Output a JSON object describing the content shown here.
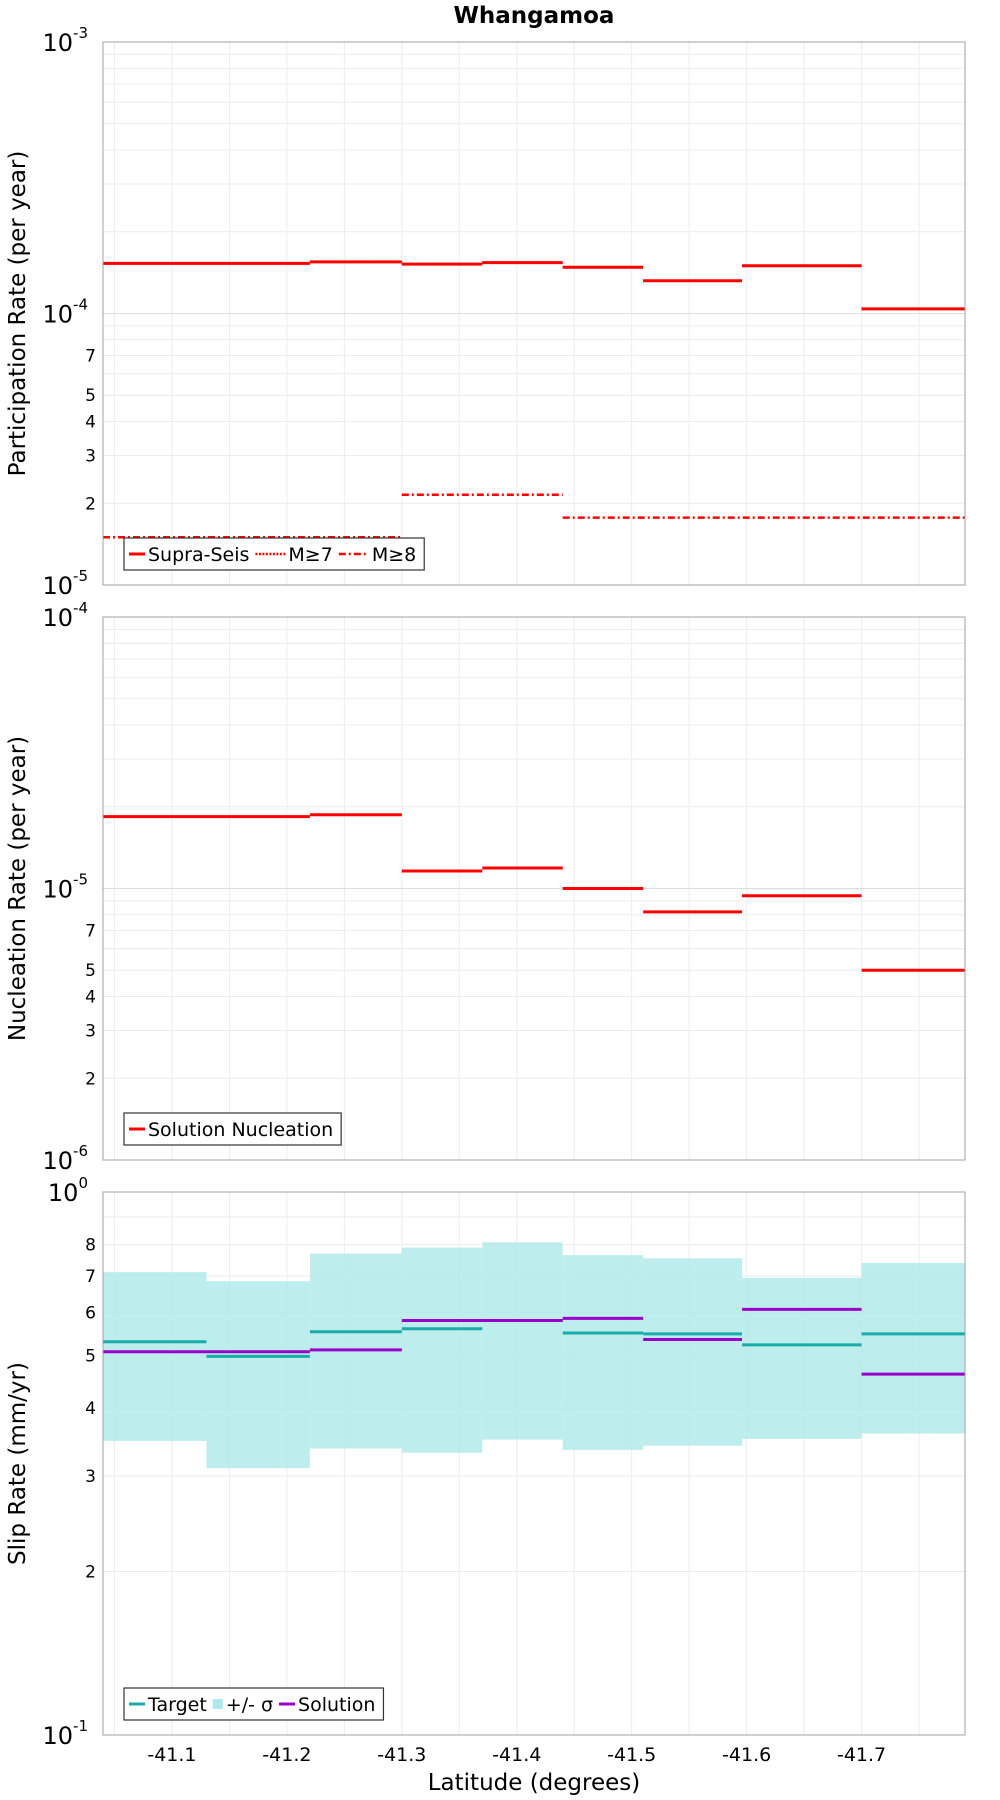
{
  "chart_data": [
    {
      "type": "line",
      "title": "Whangamoa",
      "ylabel": "Participation Rate (per year)",
      "xlabel": "",
      "xlim": [
        -41.04,
        -41.79
      ],
      "ylim": [
        1e-05,
        0.001
      ],
      "yscale": "log",
      "y_major_ticks": [
        {
          "base": "10",
          "exp": "-3",
          "value": 0.001
        },
        {
          "base": "10",
          "exp": "-4",
          "value": 0.0001
        },
        {
          "base": "10",
          "exp": "-5",
          "value": 1e-05
        }
      ],
      "y_minor_tick_labels": [
        "2",
        "3",
        "4",
        "5",
        "7"
      ],
      "grid": true,
      "legend_position": "bottom-left",
      "series": [
        {
          "name": "Supra-Seis",
          "color": "#ff0000",
          "dash": "solid",
          "steps": [
            [
              -41.04,
              -41.22,
              0.000153
            ],
            [
              -41.22,
              -41.3,
              0.000155
            ],
            [
              -41.3,
              -41.37,
              0.000152
            ],
            [
              -41.37,
              -41.44,
              0.000154
            ],
            [
              -41.44,
              -41.51,
              0.000148
            ],
            [
              -41.51,
              -41.596,
              0.000132
            ],
            [
              -41.596,
              -41.7,
              0.00015
            ],
            [
              -41.7,
              -41.79,
              0.000104
            ]
          ]
        },
        {
          "name": "M≥7",
          "color": "#ff0000",
          "dash": "dotted",
          "steps": [
            [
              -41.04,
              -41.22,
              0.000153
            ],
            [
              -41.22,
              -41.3,
              0.000155
            ],
            [
              -41.3,
              -41.37,
              0.000152
            ],
            [
              -41.37,
              -41.44,
              0.000154
            ],
            [
              -41.44,
              -41.51,
              0.000148
            ],
            [
              -41.51,
              -41.596,
              0.000132
            ],
            [
              -41.596,
              -41.7,
              0.00015
            ],
            [
              -41.7,
              -41.79,
              0.000104
            ]
          ]
        },
        {
          "name": "M≥8",
          "color": "#ff0000",
          "dash": "dashdot",
          "steps": [
            [
              -41.04,
              -41.3,
              1.5e-05
            ],
            [
              -41.3,
              -41.44,
              2.15e-05
            ],
            [
              -41.44,
              -41.79,
              1.77e-05
            ]
          ]
        }
      ]
    },
    {
      "type": "line",
      "title": "",
      "ylabel": "Nucleation Rate (per year)",
      "xlabel": "",
      "xlim": [
        -41.04,
        -41.79
      ],
      "ylim": [
        1e-06,
        0.0001
      ],
      "yscale": "log",
      "y_major_ticks": [
        {
          "base": "10",
          "exp": "-4",
          "value": 0.0001
        },
        {
          "base": "10",
          "exp": "-5",
          "value": 1e-05
        },
        {
          "base": "10",
          "exp": "-6",
          "value": 1e-06
        }
      ],
      "y_minor_tick_labels": [
        "2",
        "3",
        "4",
        "5",
        "7"
      ],
      "grid": true,
      "legend_position": "bottom-left",
      "series": [
        {
          "name": "Solution Nucleation",
          "color": "#ff0000",
          "dash": "solid",
          "steps": [
            [
              -41.04,
              -41.22,
              1.84e-05
            ],
            [
              -41.22,
              -41.3,
              1.87e-05
            ],
            [
              -41.3,
              -41.37,
              1.16e-05
            ],
            [
              -41.37,
              -41.44,
              1.19e-05
            ],
            [
              -41.44,
              -41.51,
              1e-05
            ],
            [
              -41.51,
              -41.596,
              8.2e-06
            ],
            [
              -41.596,
              -41.7,
              9.4e-06
            ],
            [
              -41.7,
              -41.79,
              5e-06
            ]
          ]
        }
      ]
    },
    {
      "type": "line",
      "title": "",
      "ylabel": "Slip Rate (mm/yr)",
      "xlabel": "Latitude (degrees)",
      "xlim": [
        -41.04,
        -41.79
      ],
      "ylim": [
        0.1,
        1.0
      ],
      "yscale": "log",
      "y_major_ticks": [
        {
          "base": "10",
          "exp": "0",
          "value": 1
        },
        {
          "base": "10",
          "exp": "-1",
          "value": 0.1
        }
      ],
      "y_minor_tick_labels": [
        "2",
        "3",
        "4",
        "5",
        "6",
        "7",
        "8"
      ],
      "x_tick_labels": [
        "-41.1",
        "-41.2",
        "-41.3",
        "-41.4",
        "-41.5",
        "-41.6",
        "-41.7"
      ],
      "grid": true,
      "legend_position": "bottom-left",
      "series": [
        {
          "name": "Target",
          "color": "#1aabab",
          "dash": "solid",
          "steps": [
            [
              -41.04,
              -41.13,
              0.53
            ],
            [
              -41.13,
              -41.22,
              0.498
            ],
            [
              -41.22,
              -41.3,
              0.553
            ],
            [
              -41.3,
              -41.37,
              0.56
            ],
            [
              -41.37,
              -41.44,
              0.58
            ],
            [
              -41.44,
              -41.51,
              0.55
            ],
            [
              -41.51,
              -41.596,
              0.548
            ],
            [
              -41.596,
              -41.7,
              0.523
            ],
            [
              -41.7,
              -41.79,
              0.548
            ]
          ]
        },
        {
          "name": "+/- σ",
          "color": "#aee8e8",
          "kind": "band",
          "steps": [
            [
              -41.04,
              -41.13,
              0.348,
              0.712
            ],
            [
              -41.13,
              -41.22,
              0.31,
              0.685
            ],
            [
              -41.22,
              -41.3,
              0.337,
              0.77
            ],
            [
              -41.3,
              -41.37,
              0.331,
              0.79
            ],
            [
              -41.37,
              -41.44,
              0.35,
              0.808
            ],
            [
              -41.44,
              -41.51,
              0.335,
              0.765
            ],
            [
              -41.51,
              -41.596,
              0.341,
              0.755
            ],
            [
              -41.596,
              -41.7,
              0.351,
              0.695
            ],
            [
              -41.7,
              -41.79,
              0.359,
              0.74
            ]
          ]
        },
        {
          "name": "Solution",
          "color": "#9900cc",
          "dash": "solid",
          "steps": [
            [
              -41.04,
              -41.13,
              0.508
            ],
            [
              -41.13,
              -41.22,
              0.508
            ],
            [
              -41.22,
              -41.3,
              0.512
            ],
            [
              -41.3,
              -41.37,
              0.58
            ],
            [
              -41.37,
              -41.44,
              0.58
            ],
            [
              -41.44,
              -41.51,
              0.585
            ],
            [
              -41.51,
              -41.596,
              0.535
            ],
            [
              -41.596,
              -41.7,
              0.608
            ],
            [
              -41.7,
              -41.79,
              0.462
            ]
          ]
        }
      ]
    }
  ]
}
